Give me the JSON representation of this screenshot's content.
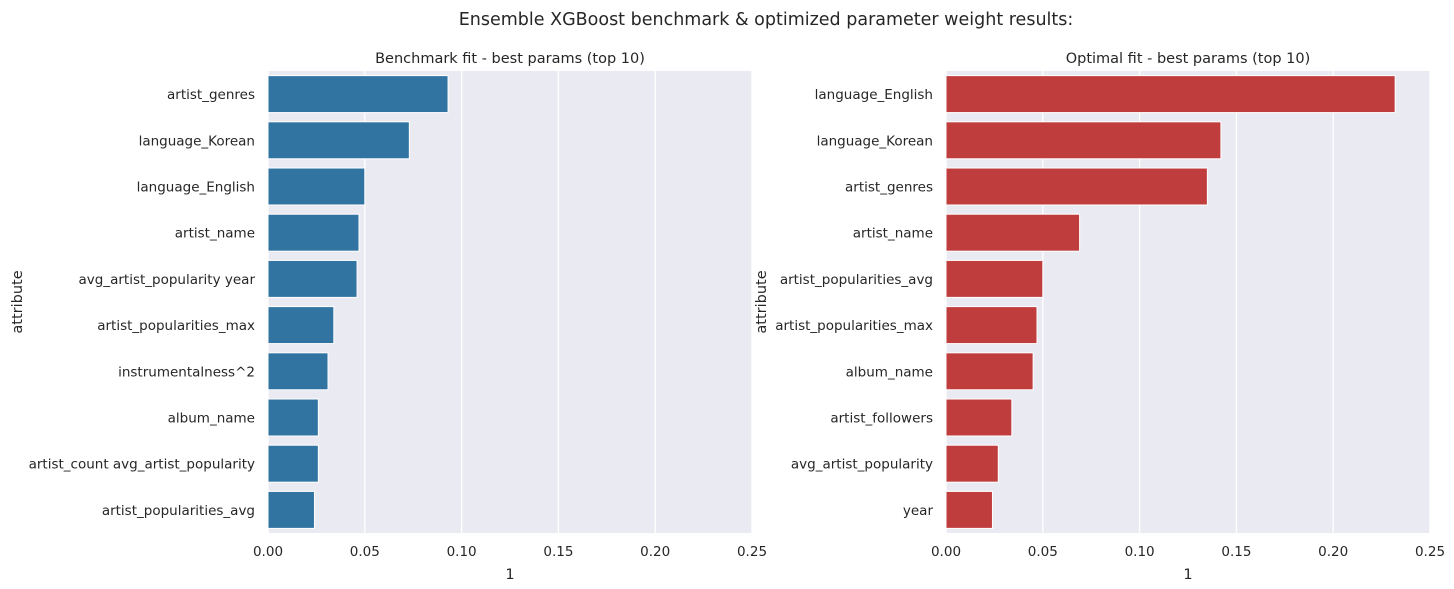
{
  "figure": {
    "suptitle": "Ensemble XGBoost benchmark & optimized parameter weight results:"
  },
  "chart_data": [
    {
      "type": "bar",
      "orientation": "horizontal",
      "title": "Benchmark fit - best params (top 10)",
      "xlabel": "1",
      "ylabel": "attribute",
      "xlim": [
        0,
        0.25
      ],
      "xticks": [
        "0.00",
        "0.05",
        "0.10",
        "0.15",
        "0.20",
        "0.25"
      ],
      "grid": true,
      "color": "#3274a1",
      "categories": [
        "artist_genres",
        "language_Korean",
        "language_English",
        "artist_name",
        "avg_artist_popularity year",
        "artist_popularities_max",
        "instrumentalness^2",
        "album_name",
        "artist_count avg_artist_popularity",
        "artist_popularities_avg"
      ],
      "values": [
        0.093,
        0.073,
        0.05,
        0.047,
        0.046,
        0.034,
        0.031,
        0.026,
        0.026,
        0.024
      ]
    },
    {
      "type": "bar",
      "orientation": "horizontal",
      "title": "Optimal fit - best params (top 10)",
      "xlabel": "1",
      "ylabel": "attribute",
      "xlim": [
        0,
        0.25
      ],
      "xticks": [
        "0.00",
        "0.05",
        "0.10",
        "0.15",
        "0.20",
        "0.25"
      ],
      "grid": true,
      "color": "#c03d3e",
      "categories": [
        "language_English",
        "language_Korean",
        "artist_genres",
        "artist_name",
        "artist_popularities_avg",
        "artist_popularities_max",
        "album_name",
        "artist_followers",
        "avg_artist_popularity",
        "year"
      ],
      "values": [
        0.232,
        0.142,
        0.135,
        0.069,
        0.05,
        0.047,
        0.045,
        0.034,
        0.027,
        0.024
      ]
    }
  ]
}
